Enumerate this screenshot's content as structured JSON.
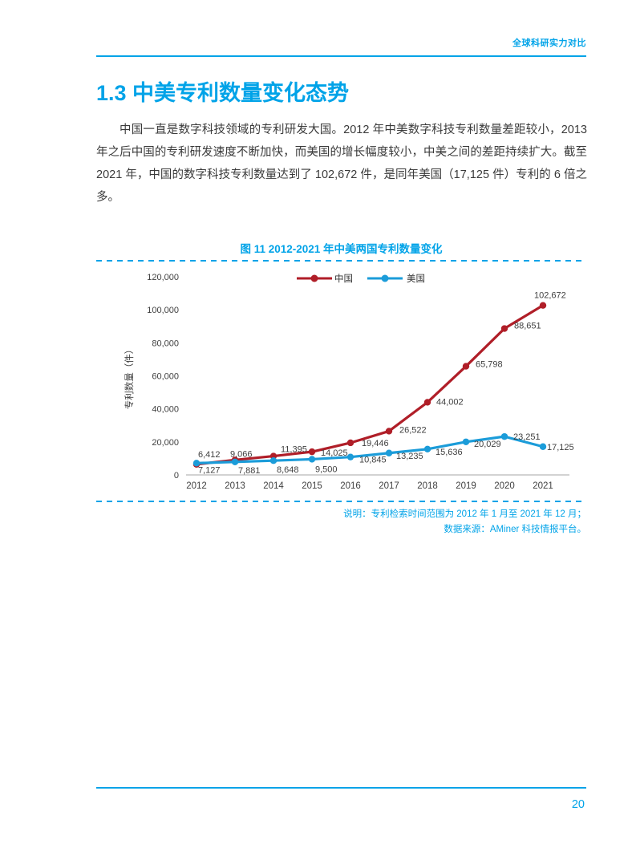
{
  "header": {
    "label": "全球科研实力对比"
  },
  "section": {
    "title": "1.3 中美专利数量变化态势",
    "paragraph": "中国一直是数字科技领域的专利研发大国。2012 年中美数字科技专利数量差距较小，2013 年之后中国的专利研发速度不断加快，而美国的增长幅度较小，中美之间的差距持续扩大。截至 2021 年，中国的数字科技专利数量达到了 102,672 件，是同年美国（17,125 件）专利的 6 倍之多。"
  },
  "figure": {
    "title": "图 11 2012-2021 年中美两国专利数量变化",
    "notes": [
      "说明：专利检索时间范围为 2012 年 1 月至 2021 年 12 月；",
      "数据来源：AMiner 科技情报平台。"
    ]
  },
  "chart_data": {
    "type": "line",
    "x": [
      2012,
      2013,
      2014,
      2015,
      2016,
      2017,
      2018,
      2019,
      2020,
      2021
    ],
    "series": [
      {
        "name": "中国",
        "color": "#b01e28",
        "values": [
          6412,
          9066,
          11395,
          14025,
          19446,
          26522,
          44002,
          65798,
          88651,
          102672
        ]
      },
      {
        "name": "美国",
        "color": "#1b9cd9",
        "values": [
          7127,
          7881,
          8648,
          9500,
          10845,
          13235,
          15636,
          20029,
          23251,
          17125
        ]
      }
    ],
    "title": "",
    "xlabel": "",
    "ylabel": "专利数量（件）",
    "ylim": [
      0,
      120000
    ],
    "ytick_step": 20000,
    "grid": false,
    "legend_position": "top-center",
    "value_labels": true
  },
  "footer": {
    "page_number": "20"
  },
  "colors": {
    "accent": "#00a3e8",
    "axis_text": "#404040",
    "axis_line": "#a6a6a6",
    "label_text": "#3f3f3f",
    "legend_text": "#333333"
  }
}
